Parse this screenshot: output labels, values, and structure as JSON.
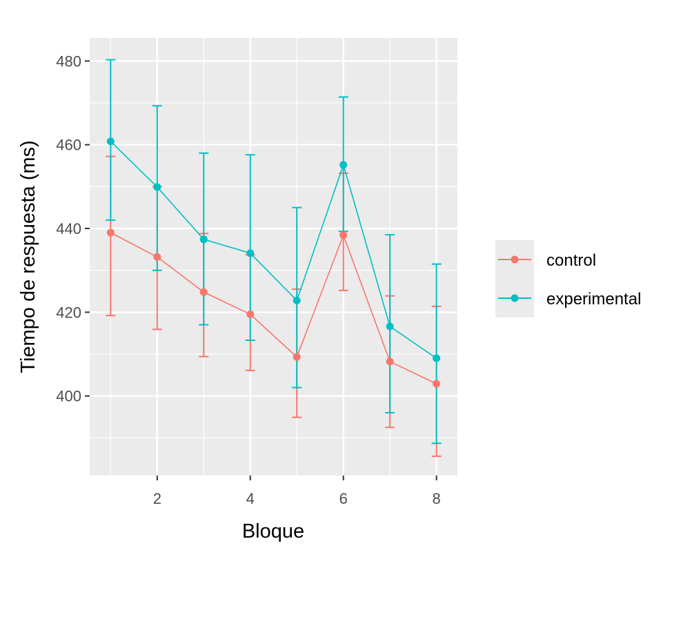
{
  "chart_data": {
    "type": "line",
    "title": "",
    "xlabel": "Bloque",
    "ylabel": "Tiempo de respuesta (ms)",
    "x": [
      1,
      2,
      3,
      4,
      5,
      6,
      7,
      8
    ],
    "x_ticks": [
      2,
      4,
      6,
      8
    ],
    "y_ticks": [
      400,
      420,
      440,
      460,
      480
    ],
    "xlim": [
      0.55,
      8.45
    ],
    "ylim": [
      381,
      485.5
    ],
    "grid": true,
    "legend_position": "right",
    "series": [
      {
        "name": "control",
        "color": "#F8766D",
        "values": [
          439,
          433.2,
          424.8,
          419.5,
          409.3,
          438.4,
          408.2,
          402.9
        ],
        "error_low": [
          419.2,
          415.9,
          409.4,
          406.1,
          394.9,
          425.2,
          392.5,
          385.6
        ],
        "error_high": [
          457.2,
          450.0,
          438.8,
          433.7,
          425.5,
          453.2,
          423.9,
          421.4
        ]
      },
      {
        "name": "experimental",
        "color": "#00BFC4",
        "values": [
          460.8,
          449.9,
          437.4,
          434.1,
          422.8,
          455.2,
          416.6,
          409.0
        ],
        "error_low": [
          442.0,
          430.0,
          417.0,
          413.3,
          402.0,
          439.3,
          396.0,
          388.7
        ],
        "error_high": [
          480.3,
          469.3,
          458.0,
          457.6,
          445.0,
          471.4,
          438.5,
          431.5
        ]
      }
    ]
  }
}
